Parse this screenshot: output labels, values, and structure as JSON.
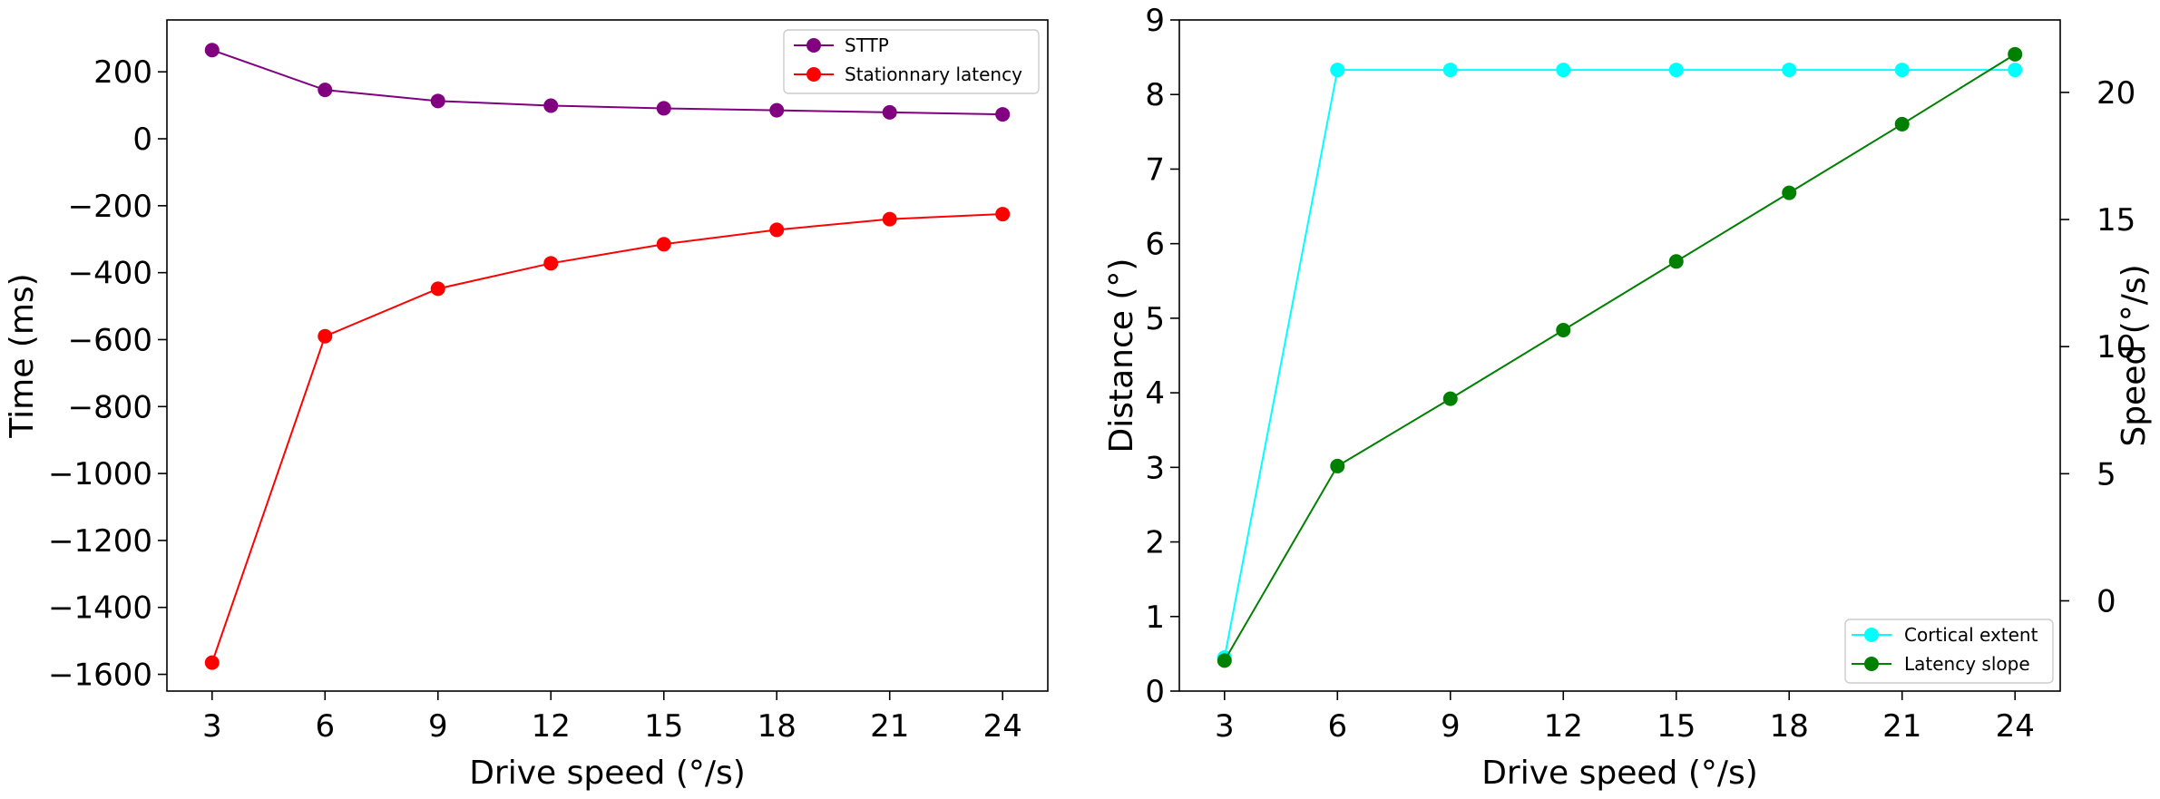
{
  "chart_data": [
    {
      "type": "line",
      "title": "",
      "xlabel": "Drive speed (°/s)",
      "ylabel": "Time (ms)",
      "x": [
        3,
        6,
        9,
        12,
        15,
        18,
        21,
        24
      ],
      "xticks": [
        "3",
        "6",
        "9",
        "12",
        "15",
        "18",
        "21",
        "24"
      ],
      "xlim": [
        1.8,
        25.2
      ],
      "ylim": [
        -1650,
        355
      ],
      "yticks": [
        200,
        0,
        -200,
        -400,
        -600,
        -800,
        -1000,
        -1200,
        -1400,
        -1600
      ],
      "ytick_labels": [
        "200",
        "0",
        "−200",
        "−400",
        "−600",
        "−800",
        "−1000",
        "−1200",
        "−1400",
        "−1600"
      ],
      "grid": false,
      "legend_position": "top-right",
      "series": [
        {
          "name": "STTP",
          "color": "#800080",
          "marker": "circle",
          "values": [
            265,
            146,
            113,
            99,
            91,
            85,
            79,
            73
          ]
        },
        {
          "name": "Stationnary latency",
          "color": "#ff0000",
          "marker": "circle",
          "values": [
            -1565,
            -590,
            -448,
            -372,
            -315,
            -272,
            -240,
            -225
          ]
        }
      ]
    },
    {
      "type": "line",
      "title": "",
      "xlabel": "Drive speed (°/s)",
      "ylabel": "Distance (°)",
      "y2label": "Speed (°/s)",
      "x": [
        3,
        6,
        9,
        12,
        15,
        18,
        21,
        24
      ],
      "xticks": [
        "3",
        "6",
        "9",
        "12",
        "15",
        "18",
        "21",
        "24"
      ],
      "xlim": [
        1.8,
        25.2
      ],
      "ylim": [
        0,
        9
      ],
      "yticks": [
        0,
        1,
        2,
        3,
        4,
        5,
        6,
        7,
        8,
        9
      ],
      "ytick_labels": [
        "0",
        "1",
        "2",
        "3",
        "4",
        "5",
        "6",
        "7",
        "8",
        "9"
      ],
      "y2lim": [
        -3.55,
        22.85
      ],
      "y2ticks": [
        0,
        5,
        10,
        15,
        20
      ],
      "y2tick_labels": [
        "0",
        "5",
        "10",
        "15",
        "20"
      ],
      "grid": false,
      "legend_position": "bottom-right",
      "series": [
        {
          "name": "Cortical extent",
          "color": "#00ffff",
          "marker": "circle",
          "axis": "left",
          "values": [
            0.45,
            8.33,
            8.33,
            8.33,
            8.33,
            8.33,
            8.33,
            8.33
          ]
        },
        {
          "name": "Latency slope",
          "color": "#008000",
          "marker": "circle",
          "axis": "right",
          "values": [
            -2.35,
            5.3,
            7.95,
            10.65,
            13.35,
            16.05,
            18.75,
            21.5
          ]
        }
      ]
    }
  ]
}
